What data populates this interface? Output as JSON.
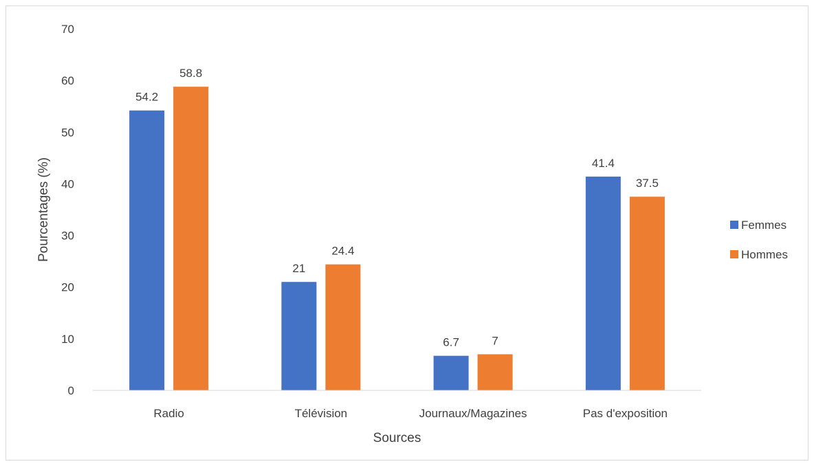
{
  "chart_data": {
    "type": "bar",
    "title": "",
    "xlabel": "Sources",
    "ylabel": "Pourcentages (%)",
    "categories": [
      "Radio",
      "Télévision",
      "Journaux/Magazines",
      "Pas d'exposition"
    ],
    "series": [
      {
        "name": "Femmes",
        "color": "#4472C4",
        "values": [
          54.2,
          21,
          6.7,
          41.4
        ]
      },
      {
        "name": "Hommes",
        "color": "#ED7D31",
        "values": [
          58.8,
          24.4,
          7,
          37.5
        ]
      }
    ],
    "ylim": [
      0,
      70
    ],
    "yticks": [
      0,
      10,
      20,
      30,
      40,
      50,
      60,
      70
    ],
    "grid": false,
    "legend": "right"
  }
}
